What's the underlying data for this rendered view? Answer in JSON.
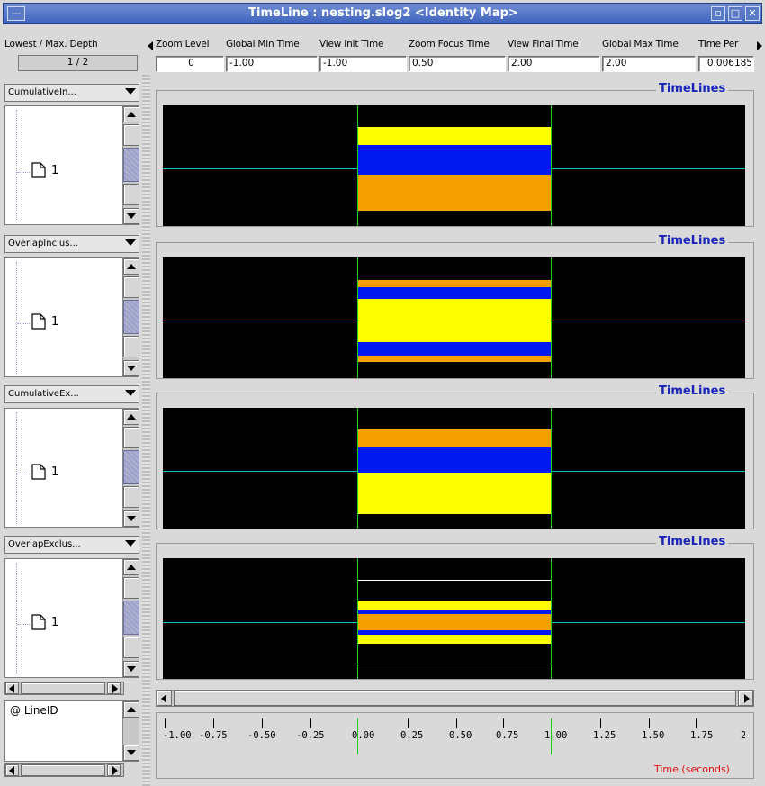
{
  "window": {
    "title": "TimeLine : nesting.slog2  <Identity Map>"
  },
  "header": {
    "depth_label": "Lowest / Max. Depth",
    "depth_value": "1 / 2",
    "columns": [
      {
        "label": "Zoom Level",
        "value": "0"
      },
      {
        "label": "Global Min Time",
        "value": "-1.00"
      },
      {
        "label": "View  Init Time",
        "value": "-1.00"
      },
      {
        "label": "Zoom Focus Time",
        "value": "0.50"
      },
      {
        "label": "View Final Time",
        "value": "2.00"
      },
      {
        "label": "Global Max Time",
        "value": "2.00"
      },
      {
        "label": "Time Per",
        "value": "0.006185"
      }
    ]
  },
  "rows": [
    {
      "view": "CumulativeIn...",
      "tree_item": "1",
      "title": "TimeLines"
    },
    {
      "view": "OverlapInclus...",
      "tree_item": "1",
      "title": "TimeLines"
    },
    {
      "view": "CumulativeEx...",
      "tree_item": "1",
      "title": "TimeLines"
    },
    {
      "view": "OverlapExclus...",
      "tree_item": "1",
      "title": "TimeLines"
    }
  ],
  "line_id_label": "@ LineID",
  "ruler": {
    "tick_labels": [
      "-1.00",
      "-0.75",
      "-0.50",
      "-0.25",
      "0.00",
      "0.25",
      "0.50",
      "0.75",
      "1.00",
      "1.25",
      "1.50",
      "1.75",
      "2"
    ],
    "title": "Time (seconds)"
  },
  "colors": {
    "yellow": "#ffff00",
    "blue": "#0018f0",
    "orange": "#f5a000",
    "timeline": "#00c0c0",
    "marker": "#22d022",
    "title_blue": "#1a25b8",
    "axis_red": "#e01010"
  }
}
